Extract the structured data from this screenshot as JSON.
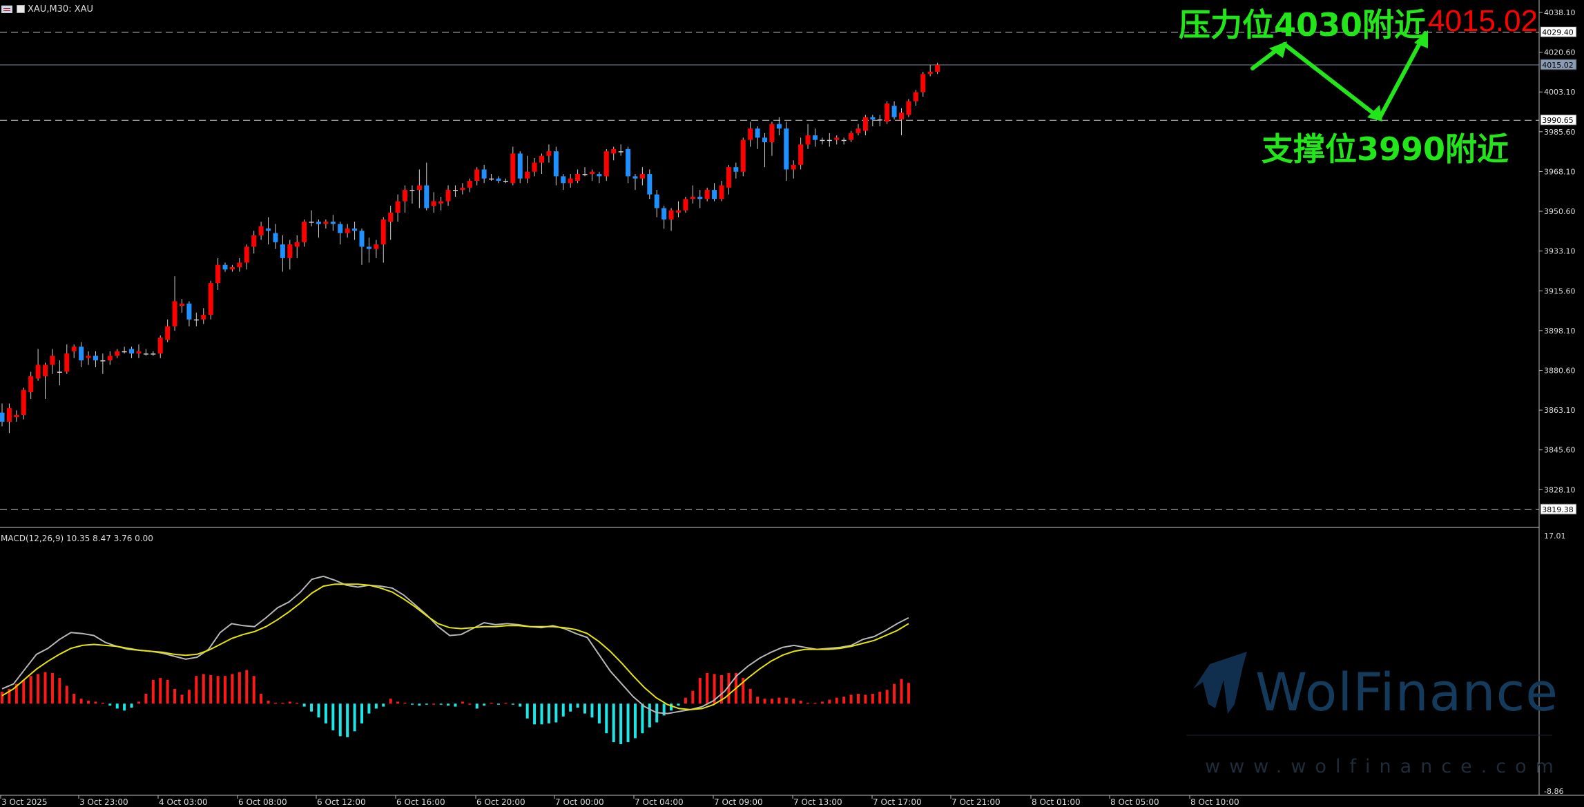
{
  "header": {
    "title": "XAU,M30:  XAU"
  },
  "macd": {
    "label": "MACD(12,26,9) 10.35 8.47 3.76 0.00"
  },
  "watermark": {
    "brand": "WolFinance",
    "url": "www.wolfinance.com"
  },
  "annotations": {
    "resistance": "压力位4030附近",
    "support": "支撑位3990附近",
    "price": "4015.02",
    "color_text": "#22e51a",
    "color_price": "#ff0000"
  },
  "chart_data": [
    {
      "type": "candlestick",
      "symbol": "XAU",
      "timeframe": "M30",
      "title": "XAU,M30:  XAU",
      "ylim": [
        3810.0,
        4040.0
      ],
      "y_ticks": [
        "4038.10",
        "4020.60",
        "4003.10",
        "3985.60",
        "3968.10",
        "3950.60",
        "3933.10",
        "3915.60",
        "3898.10",
        "3880.60",
        "3863.10",
        "3845.60",
        "3828.10"
      ],
      "x_labels": [
        "3 Oct 2025",
        "3 Oct 23:00",
        "4 Oct 03:00",
        "6 Oct 08:00",
        "6 Oct 12:00",
        "6 Oct 16:00",
        "6 Oct 20:00",
        "7 Oct 00:00",
        "7 Oct 04:00",
        "7 Oct 09:00",
        "7 Oct 13:00",
        "7 Oct 17:00",
        "7 Oct 21:00",
        "8 Oct 01:00",
        "8 Oct 05:00",
        "8 Oct 10:00"
      ],
      "levels": [
        {
          "value": "4029.40",
          "style": "dashed"
        },
        {
          "value": "4015.02",
          "style": "solid",
          "highlight": true
        },
        {
          "value": "3990.65",
          "style": "dashed"
        },
        {
          "value": "3819.38",
          "style": "dashed"
        }
      ],
      "colors": {
        "up": "#ff0000",
        "down": "#1e90ff",
        "line": "#ffffff"
      },
      "candles": [
        [
          3862,
          3858,
          3866,
          3856
        ],
        [
          3858,
          3864,
          3866,
          3853
        ],
        [
          3860,
          3861,
          3863,
          3858
        ],
        [
          3861,
          3872,
          3873,
          3859
        ],
        [
          3871,
          3878,
          3880,
          3868
        ],
        [
          3877,
          3883,
          3890,
          3876
        ],
        [
          3878,
          3883,
          3884,
          3868
        ],
        [
          3883,
          3887,
          3890,
          3879
        ],
        [
          3880,
          3880,
          3885,
          3874
        ],
        [
          3880,
          3888,
          3892,
          3879
        ],
        [
          3889,
          3891,
          3892,
          3886
        ],
        [
          3891,
          3885,
          3893,
          3882
        ],
        [
          3886,
          3887,
          3889,
          3883
        ],
        [
          3887,
          3885,
          3889,
          3882
        ],
        [
          3885,
          3885,
          3888,
          3879
        ],
        [
          3885,
          3887,
          3889,
          3883
        ],
        [
          3887,
          3889,
          3890,
          3886
        ],
        [
          3889,
          3889,
          3891,
          3888
        ],
        [
          3890,
          3888,
          3891,
          3886
        ],
        [
          3888,
          3889,
          3892,
          3886
        ],
        [
          3888,
          3888,
          3890,
          3887
        ],
        [
          3888,
          3888,
          3889,
          3887
        ],
        [
          3888,
          3895,
          3896,
          3886
        ],
        [
          3894,
          3900,
          3903,
          3893
        ],
        [
          3900,
          3911,
          3922,
          3898
        ],
        [
          3909,
          3910,
          3912,
          3906
        ],
        [
          3910,
          3903,
          3911,
          3900
        ],
        [
          3903,
          3903,
          3906,
          3900
        ],
        [
          3903,
          3905,
          3908,
          3901
        ],
        [
          3905,
          3919,
          3920,
          3903
        ],
        [
          3919,
          3927,
          3930,
          3916
        ],
        [
          3927,
          3925,
          3928,
          3924
        ],
        [
          3925,
          3926,
          3927,
          3924
        ],
        [
          3926,
          3928,
          3930,
          3924
        ],
        [
          3928,
          3935,
          3936,
          3925
        ],
        [
          3935,
          3940,
          3942,
          3932
        ],
        [
          3940,
          3944,
          3946,
          3938
        ],
        [
          3943,
          3942,
          3948,
          3936
        ],
        [
          3941,
          3937,
          3945,
          3934
        ],
        [
          3936,
          3930,
          3940,
          3924
        ],
        [
          3930,
          3936,
          3938,
          3925
        ],
        [
          3935,
          3937,
          3940,
          3930
        ],
        [
          3937,
          3946,
          3947,
          3935
        ],
        [
          3946,
          3946,
          3951,
          3944
        ],
        [
          3946,
          3945,
          3947,
          3939
        ],
        [
          3945,
          3946,
          3947,
          3943
        ],
        [
          3946,
          3945,
          3949,
          3942
        ],
        [
          3945,
          3941,
          3946,
          3936
        ],
        [
          3941,
          3943,
          3945,
          3939
        ],
        [
          3943,
          3942,
          3946,
          3938
        ],
        [
          3942,
          3935,
          3943,
          3927
        ],
        [
          3935,
          3934,
          3939,
          3928
        ],
        [
          3934,
          3936,
          3938,
          3930
        ],
        [
          3936,
          3947,
          3948,
          3928
        ],
        [
          3946,
          3950,
          3953,
          3938
        ],
        [
          3950,
          3955,
          3958,
          3946
        ],
        [
          3955,
          3960,
          3962,
          3950
        ],
        [
          3960,
          3960,
          3962,
          3954
        ],
        [
          3960,
          3962,
          3969,
          3952
        ],
        [
          3962,
          3952,
          3972,
          3951
        ],
        [
          3953,
          3955,
          3959,
          3950
        ],
        [
          3954,
          3955,
          3957,
          3951
        ],
        [
          3955,
          3960,
          3962,
          3953
        ],
        [
          3960,
          3960,
          3962,
          3957
        ],
        [
          3960,
          3961,
          3963,
          3958
        ],
        [
          3961,
          3964,
          3965,
          3959
        ],
        [
          3964,
          3969,
          3970,
          3962
        ],
        [
          3969,
          3965,
          3971,
          3963
        ],
        [
          3965,
          3965,
          3967,
          3964
        ],
        [
          3965,
          3964,
          3966,
          3963
        ],
        [
          3964,
          3964,
          3965,
          3963
        ],
        [
          3963,
          3976,
          3979,
          3962
        ],
        [
          3976,
          3965,
          3977,
          3963
        ],
        [
          3965,
          3968,
          3975,
          3963
        ],
        [
          3968,
          3972,
          3974,
          3966
        ],
        [
          3972,
          3975,
          3976,
          3967
        ],
        [
          3975,
          3977,
          3980,
          3972
        ],
        [
          3977,
          3966,
          3979,
          3962
        ],
        [
          3966,
          3963,
          3967,
          3960
        ],
        [
          3963,
          3965,
          3967,
          3961
        ],
        [
          3964,
          3967,
          3969,
          3963
        ],
        [
          3967,
          3967,
          3970,
          3966
        ],
        [
          3967,
          3968,
          3969,
          3964
        ],
        [
          3967,
          3966,
          3968,
          3963
        ],
        [
          3966,
          3977,
          3978,
          3964
        ],
        [
          3976,
          3978,
          3979,
          3973
        ],
        [
          3977,
          3977,
          3980,
          3975
        ],
        [
          3978,
          3966,
          3979,
          3963
        ],
        [
          3966,
          3965,
          3967,
          3960
        ],
        [
          3965,
          3967,
          3970,
          3962
        ],
        [
          3967,
          3958,
          3969,
          3956
        ],
        [
          3958,
          3952,
          3960,
          3948
        ],
        [
          3952,
          3947,
          3953,
          3943
        ],
        [
          3947,
          3951,
          3952,
          3942
        ],
        [
          3950,
          3951,
          3955,
          3948
        ],
        [
          3951,
          3956,
          3957,
          3950
        ],
        [
          3956,
          3957,
          3962,
          3954
        ],
        [
          3957,
          3956,
          3960,
          3952
        ],
        [
          3956,
          3960,
          3961,
          3955
        ],
        [
          3960,
          3956,
          3963,
          3955
        ],
        [
          3956,
          3962,
          3964,
          3955
        ],
        [
          3961,
          3970,
          3971,
          3958
        ],
        [
          3970,
          3968,
          3972,
          3965
        ],
        [
          3968,
          3982,
          3983,
          3966
        ],
        [
          3982,
          3987,
          3990,
          3979
        ],
        [
          3987,
          3983,
          3988,
          3978
        ],
        [
          3983,
          3981,
          3985,
          3970
        ],
        [
          3981,
          3989,
          3990,
          3975
        ],
        [
          3989,
          3987,
          3992,
          3984
        ],
        [
          3987,
          3969,
          3990,
          3964
        ],
        [
          3969,
          3971,
          3973,
          3965
        ],
        [
          3971,
          3980,
          3983,
          3969
        ],
        [
          3980,
          3984,
          3989,
          3978
        ],
        [
          3984,
          3982,
          3987,
          3979
        ],
        [
          3982,
          3982,
          3983,
          3980
        ],
        [
          3982,
          3982,
          3985,
          3979
        ],
        [
          3982,
          3983,
          3984,
          3980
        ],
        [
          3982,
          3982,
          3983,
          3980
        ],
        [
          3982,
          3985,
          3986,
          3981
        ],
        [
          3985,
          3987,
          3989,
          3984
        ],
        [
          3986,
          3992,
          3993,
          3984
        ],
        [
          3992,
          3991,
          3993,
          3988
        ],
        [
          3991,
          3991,
          3993,
          3988
        ],
        [
          3990,
          3998,
          3999,
          3989
        ],
        [
          3997,
          3992,
          3999,
          3991
        ],
        [
          3991,
          3994,
          3996,
          3984
        ],
        [
          3993,
          3999,
          4000,
          3992
        ],
        [
          3999,
          4003,
          4004,
          3997
        ],
        [
          4003,
          4011,
          4012,
          4001
        ],
        [
          4011,
          4012,
          4015,
          4010
        ],
        [
          4012,
          4015,
          4016,
          4011
        ]
      ]
    },
    {
      "type": "bar",
      "name": "MACD(12,26,9)",
      "ylim": [
        -8.86,
        17.01
      ],
      "y_ticks": [
        "17.01",
        "-8.86"
      ],
      "colors": {
        "positive": "#ff1a1a",
        "negative": "#1ee6e6",
        "main": "#b8b8b8",
        "signal": "#e6e600"
      },
      "histogram": [
        1.2,
        1.5,
        2.0,
        2.4,
        2.8,
        3.0,
        3.2,
        3.1,
        2.6,
        1.8,
        1.0,
        0.5,
        0.3,
        0.2,
        0.1,
        -0.2,
        -0.5,
        -0.7,
        -0.4,
        0.2,
        1.0,
        2.4,
        2.6,
        2.4,
        1.5,
        0.9,
        1.4,
        2.8,
        3.0,
        2.9,
        2.8,
        2.8,
        3.0,
        3.2,
        3.4,
        2.8,
        1.0,
        0.3,
        0.1,
        0.1,
        0.2,
        0.1,
        -0.3,
        -0.8,
        -1.4,
        -2.0,
        -2.7,
        -3.3,
        -3.4,
        -2.8,
        -2.0,
        -1.0,
        -0.5,
        -0.3,
        0.5,
        0.2,
        0.1,
        -0.1,
        -0.2,
        -0.1,
        0.0,
        -0.1,
        -0.2,
        -0.3,
        0.2,
        0.0,
        -0.5,
        -0.2,
        0.1,
        -0.1,
        0.1,
        -0.1,
        -0.3,
        -1.5,
        -2.1,
        -2.1,
        -2.0,
        -1.9,
        -1.3,
        -0.8,
        -0.4,
        -1.0,
        -1.4,
        -2.0,
        -3.0,
        -3.9,
        -4.1,
        -3.9,
        -3.5,
        -3.0,
        -2.4,
        -1.9,
        -1.2,
        -0.7,
        -0.2,
        0.6,
        1.3,
        2.6,
        3.1,
        3.0,
        2.9,
        3.1,
        3.1,
        2.6,
        1.5,
        0.7,
        0.5,
        0.5,
        0.6,
        0.6,
        0.5,
        0.3,
        0.1,
        0.1,
        0.2,
        0.4,
        0.6,
        0.7,
        0.9,
        1.0,
        0.9,
        1.0,
        1.2,
        1.4,
        2.0,
        2.5,
        2.1
      ],
      "main": [
        1.5,
        2.0,
        3.5,
        5.0,
        5.6,
        6.5,
        7.2,
        7.1,
        6.9,
        6.2,
        5.8,
        5.5,
        5.4,
        5.3,
        5.1,
        4.8,
        4.5,
        4.7,
        5.5,
        7.2,
        8.1,
        7.9,
        7.8,
        8.7,
        9.7,
        10.3,
        11.3,
        12.6,
        12.9,
        12.5,
        12.0,
        11.8,
        12.0,
        11.9,
        11.7,
        11.0,
        10.0,
        9.0,
        7.8,
        6.9,
        7.0,
        7.6,
        8.2,
        8.0,
        8.1,
        8.0,
        7.8,
        7.7,
        7.9,
        7.6,
        7.1,
        6.7,
        5.0,
        3.3,
        2.0,
        0.7,
        -0.3,
        -0.9,
        -1.0,
        -0.8,
        -0.6,
        -0.3,
        0.3,
        1.3,
        2.8,
        3.8,
        4.6,
        5.2,
        5.7,
        5.9,
        5.7,
        5.5,
        5.6,
        5.7,
        5.9,
        6.5,
        6.8,
        7.4,
        8.1,
        8.7
      ],
      "signal": [
        0.8,
        1.5,
        2.5,
        3.5,
        4.3,
        5.0,
        5.6,
        5.9,
        6.0,
        5.9,
        5.8,
        5.6,
        5.4,
        5.3,
        5.2,
        5.0,
        4.9,
        5.0,
        5.4,
        6.0,
        6.6,
        7.0,
        7.3,
        7.8,
        8.5,
        9.3,
        10.2,
        11.2,
        11.9,
        12.1,
        12.1,
        12.1,
        12.0,
        11.7,
        11.3,
        10.6,
        9.8,
        8.9,
        8.1,
        7.7,
        7.6,
        7.7,
        7.8,
        7.8,
        7.9,
        7.9,
        7.8,
        7.8,
        7.8,
        7.7,
        7.5,
        7.1,
        6.3,
        5.3,
        4.1,
        2.8,
        1.6,
        0.6,
        -0.1,
        -0.5,
        -0.6,
        -0.5,
        -0.1,
        0.6,
        1.6,
        2.6,
        3.5,
        4.3,
        4.9,
        5.3,
        5.5,
        5.5,
        5.5,
        5.6,
        5.8,
        6.1,
        6.4,
        6.9,
        7.4,
        8.1
      ]
    }
  ]
}
